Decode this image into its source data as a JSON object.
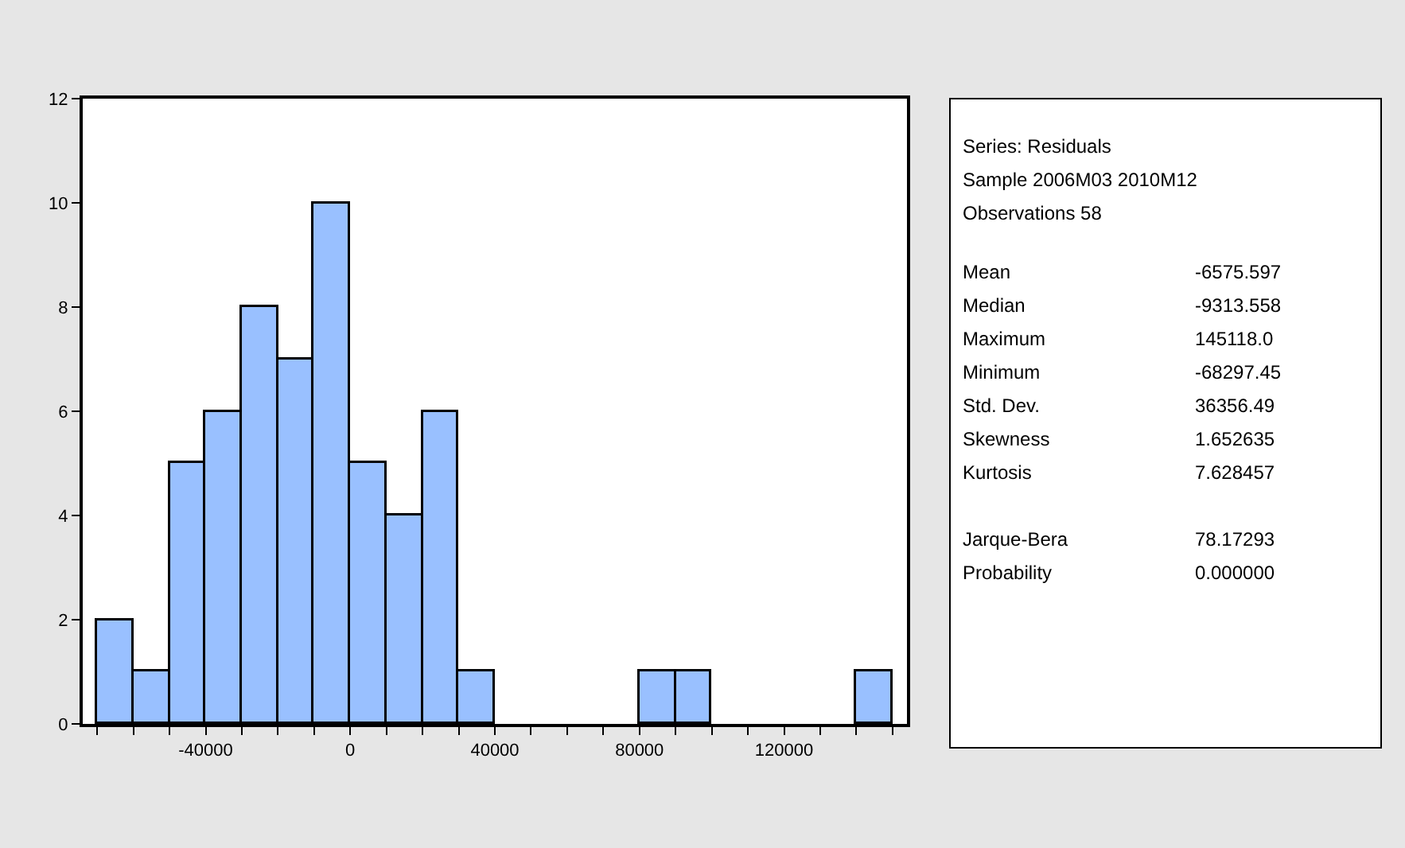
{
  "chart_data": [
    {
      "type": "histogram",
      "bins": [
        -70000,
        -60000,
        -50000,
        -40000,
        -30000,
        -20000,
        -10000,
        0,
        10000,
        20000,
        30000,
        40000,
        50000,
        60000,
        70000,
        80000,
        90000,
        100000,
        110000,
        120000,
        130000,
        140000,
        150000
      ],
      "values": [
        2,
        1,
        5,
        6,
        8,
        7,
        10,
        5,
        4,
        6,
        1,
        0,
        0,
        0,
        0,
        1,
        1,
        0,
        0,
        0,
        0,
        1
      ],
      "color": "#99c0ff",
      "xlim": [
        -74000,
        154000
      ],
      "xticks": [
        {
          "value": -70000,
          "label": null
        },
        {
          "value": -60000,
          "label": null
        },
        {
          "value": -50000,
          "label": null
        },
        -40000,
        {
          "value": -30000,
          "label": null
        },
        {
          "value": -20000,
          "label": null
        },
        {
          "value": -10000,
          "label": null
        },
        0,
        {
          "value": 10000,
          "label": null
        },
        {
          "value": 20000,
          "label": null
        },
        {
          "value": 30000,
          "label": null
        },
        40000,
        {
          "value": 50000,
          "label": null
        },
        {
          "value": 60000,
          "label": null
        },
        {
          "value": 70000,
          "label": null
        },
        80000,
        {
          "value": 90000,
          "label": null
        },
        {
          "value": 100000,
          "label": null
        },
        {
          "value": 110000,
          "label": null
        },
        120000,
        {
          "value": 130000,
          "label": null
        },
        {
          "value": 140000,
          "label": null
        },
        {
          "value": 150000,
          "label": null
        }
      ],
      "ylim": [
        0,
        12
      ],
      "yticks": [
        0,
        2,
        4,
        6,
        8,
        10,
        12
      ],
      "grid": false,
      "legend": false
    },
    {
      "type": "other",
      "annotations": [
        "Series: Residuals",
        "Sample 2006M03 2010M12",
        "Observations 58"
      ],
      "categories": [
        "Mean",
        "Median",
        "Maximum",
        "Minimum",
        "Std. Dev.",
        "Skewness",
        "Kurtosis",
        null,
        "Jarque-Bera",
        "Probability"
      ],
      "values": [
        -6575.597,
        -9313.558,
        145118.0,
        -68297.45,
        36356.49,
        1.652635,
        7.628457,
        null,
        78.17293,
        0.0
      ],
      "value_labels": [
        "-6575.597",
        "-9313.558",
        "145118.0",
        "-68297.45",
        "36356.49",
        "1.652635",
        "7.628457",
        null,
        "78.17293",
        "0.000000"
      ]
    }
  ]
}
